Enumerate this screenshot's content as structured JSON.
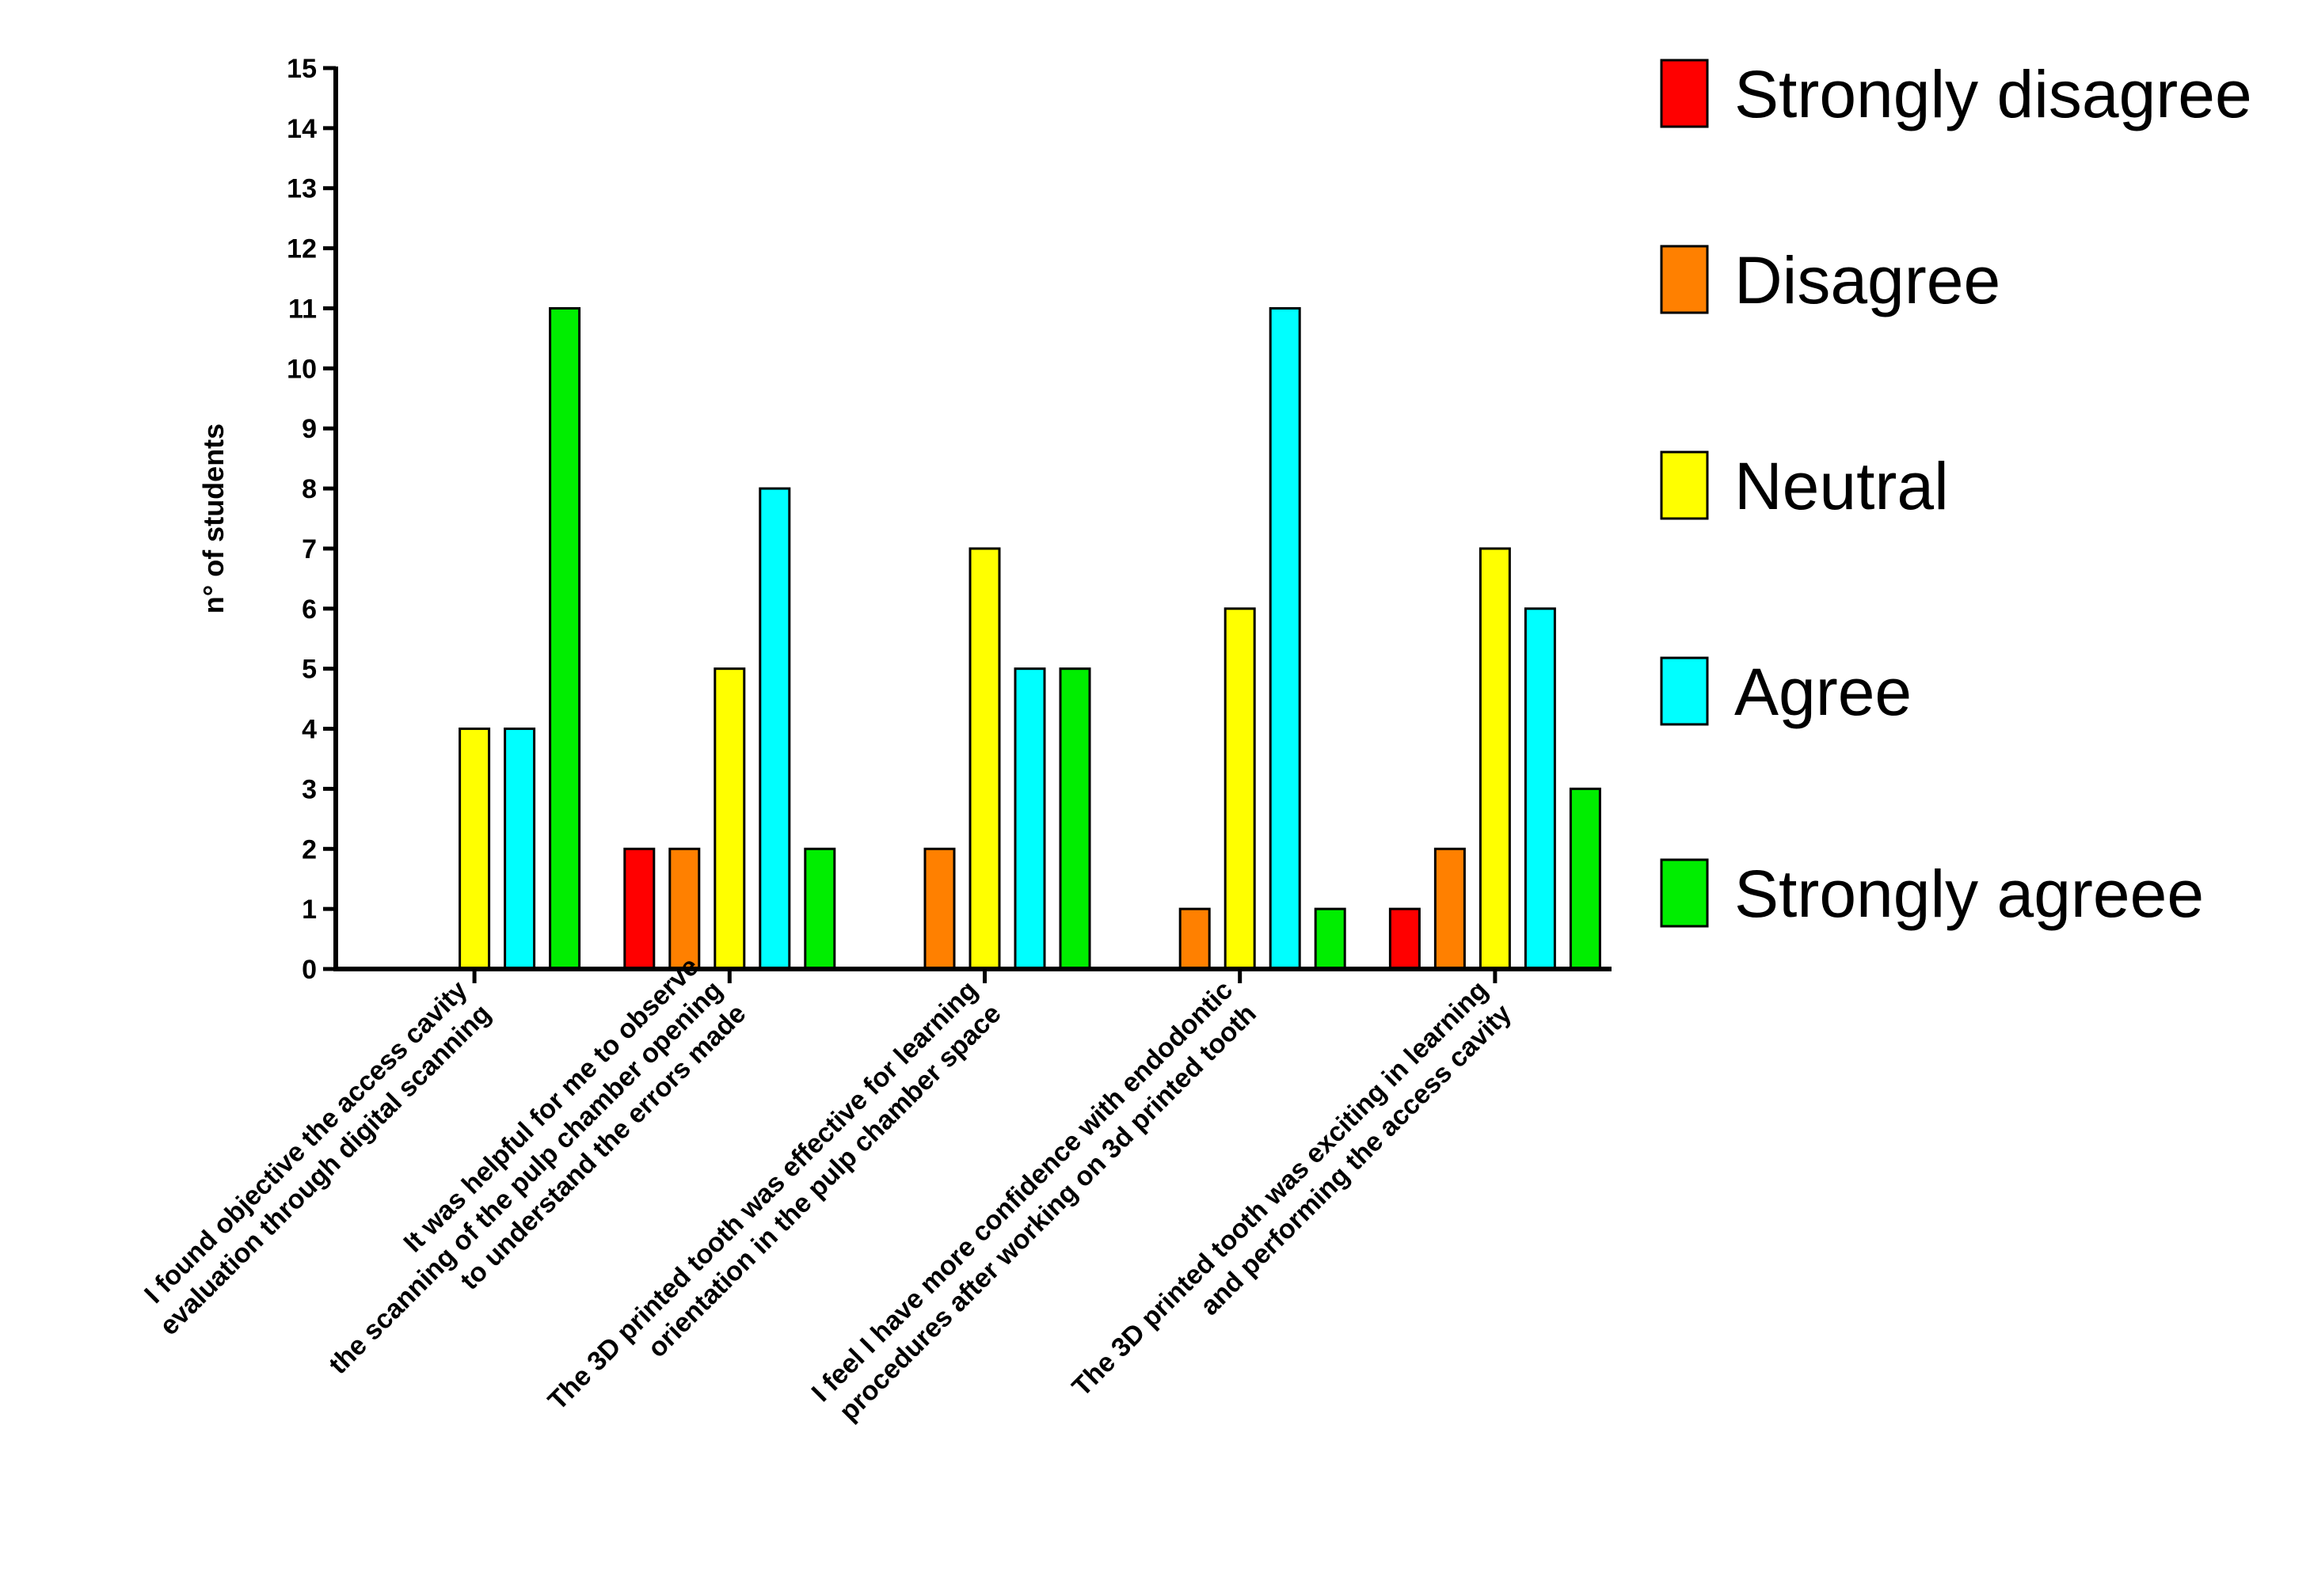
{
  "chart_data": {
    "type": "bar",
    "title": "",
    "xlabel": "",
    "ylabel": "n° of students",
    "ylim": [
      0,
      15
    ],
    "yticks": [
      0,
      1,
      2,
      3,
      4,
      5,
      6,
      7,
      8,
      9,
      10,
      11,
      12,
      13,
      14,
      15
    ],
    "grid": false,
    "legend_position": "right",
    "categories": [
      [
        "I found objective the access cavity",
        "evaluation through digital scanning"
      ],
      [
        "It was helpful for me to observe",
        "the scanning of the pulp chamber opening",
        "to understand the errors made"
      ],
      [
        "The 3D printed tooth was effective for learning",
        "orientation in the pulp chamber space"
      ],
      [
        "I feel I have more confidence with endodontic",
        "procedures after working on 3d printed tooth"
      ],
      [
        "The 3D printed tooth was exciting in learning",
        "and performing the access cavity"
      ]
    ],
    "series": [
      {
        "name": "Strongly disagree",
        "color": "#ff0000",
        "values": [
          0,
          2,
          0,
          0,
          1
        ]
      },
      {
        "name": "Disagree",
        "color": "#ff8000",
        "values": [
          0,
          2,
          2,
          1,
          2
        ]
      },
      {
        "name": "Neutral",
        "color": "#ffff00",
        "values": [
          4,
          5,
          7,
          6,
          7
        ]
      },
      {
        "name": "Agree",
        "color": "#00ffff",
        "values": [
          4,
          8,
          5,
          11,
          6
        ]
      },
      {
        "name": "Strongly agreee",
        "color": "#00ee00",
        "values": [
          11,
          2,
          5,
          1,
          3
        ]
      }
    ]
  }
}
